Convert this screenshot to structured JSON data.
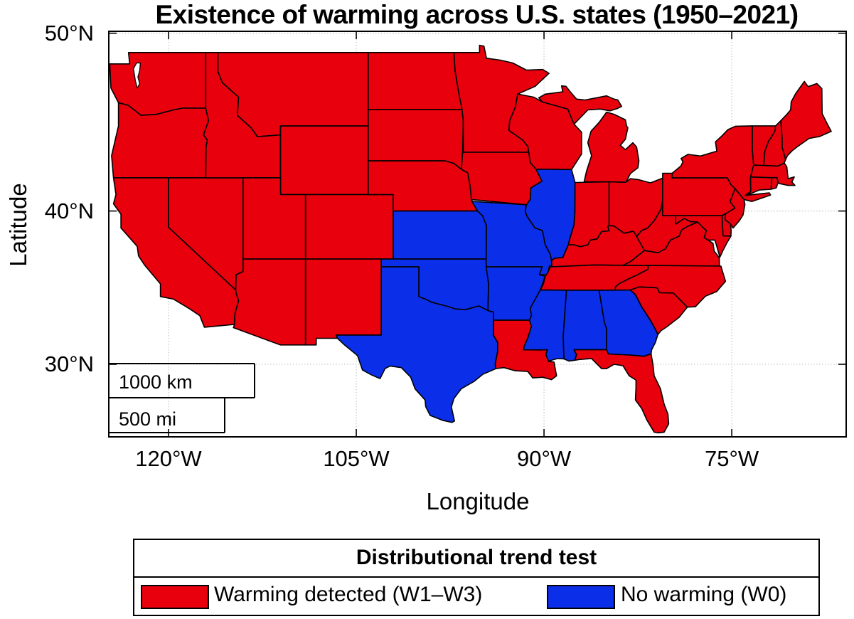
{
  "figure": {
    "title": "Existence of warming across U.S. states (1950–2021)",
    "x_axis": {
      "label": "Longitude",
      "tick_labels": [
        "120°W",
        "105°W",
        "90°W",
        "75°W"
      ]
    },
    "y_axis": {
      "label": "Latitude",
      "tick_labels": [
        "50°N",
        "40°N",
        "30°N"
      ]
    },
    "scale_bar": {
      "km_label": "1000 km",
      "mi_label": "500 mi"
    },
    "legend": {
      "title": "Distributional trend test",
      "entries": [
        {
          "key": "warming",
          "label": "Warming detected (W1–W3)",
          "color": "#e8000d"
        },
        {
          "key": "no_warming",
          "label": "No warming (W0)",
          "color": "#0b2ee8"
        }
      ]
    },
    "colors": {
      "warming": "#e8000d",
      "no_warming": "#0b2ee8",
      "state_border": "#000000",
      "grid": "#c9c9c9"
    }
  },
  "chart_data": {
    "type": "choropleth",
    "title": "Existence of warming across U.S. states (1950–2021)",
    "region": "Contiguous United States",
    "projection": "Mercator",
    "lon_ticks_deg_west": [
      120,
      105,
      90,
      75
    ],
    "lat_ticks_deg_north": [
      50,
      40,
      30
    ],
    "categories": [
      {
        "code": "W1-W3",
        "label": "Warming detected (W1–W3)",
        "color": "#e8000d"
      },
      {
        "code": "W0",
        "label": "No warming (W0)",
        "color": "#0b2ee8"
      }
    ],
    "no_warming_states": [
      "Kansas",
      "Oklahoma",
      "Texas",
      "Missouri",
      "Arkansas",
      "Illinois",
      "Mississippi",
      "Alabama",
      "Georgia"
    ],
    "warming_states": [
      "Washington",
      "Oregon",
      "California",
      "Nevada",
      "Idaho",
      "Montana",
      "Wyoming",
      "Utah",
      "Colorado",
      "Arizona",
      "New Mexico",
      "North Dakota",
      "South Dakota",
      "Nebraska",
      "Minnesota",
      "Iowa",
      "Wisconsin",
      "Michigan",
      "Indiana",
      "Ohio",
      "Kentucky",
      "Tennessee",
      "Louisiana",
      "Florida",
      "South Carolina",
      "North Carolina",
      "Virginia",
      "West Virginia",
      "Maryland",
      "Delaware",
      "New Jersey",
      "Pennsylvania",
      "New York",
      "Connecticut",
      "Rhode Island",
      "Massachusetts",
      "Vermont",
      "New Hampshire",
      "Maine"
    ]
  }
}
